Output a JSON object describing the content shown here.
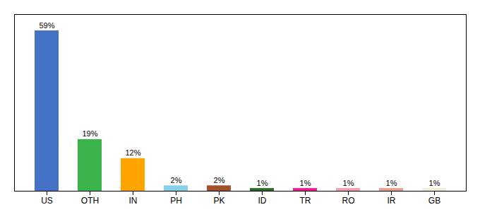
{
  "chart_data": {
    "type": "bar",
    "categories": [
      "US",
      "OTH",
      "IN",
      "PH",
      "PK",
      "ID",
      "TR",
      "RO",
      "IR",
      "GB"
    ],
    "values": [
      59,
      19,
      12,
      2,
      2,
      1,
      1,
      1,
      1,
      1
    ],
    "value_labels": [
      "59%",
      "19%",
      "12%",
      "2%",
      "2%",
      "1%",
      "1%",
      "1%",
      "1%",
      "1%"
    ],
    "colors": [
      "#4472c4",
      "#3cb34a",
      "#ffa500",
      "#87ceeb",
      "#a0522d",
      "#2d6b2d",
      "#e91e8c",
      "#f4a0b0",
      "#e8a090",
      "#f0edd8"
    ],
    "ylim": [
      0,
      65
    ],
    "data_labels": true,
    "tick_labels": "x",
    "grid": false
  }
}
